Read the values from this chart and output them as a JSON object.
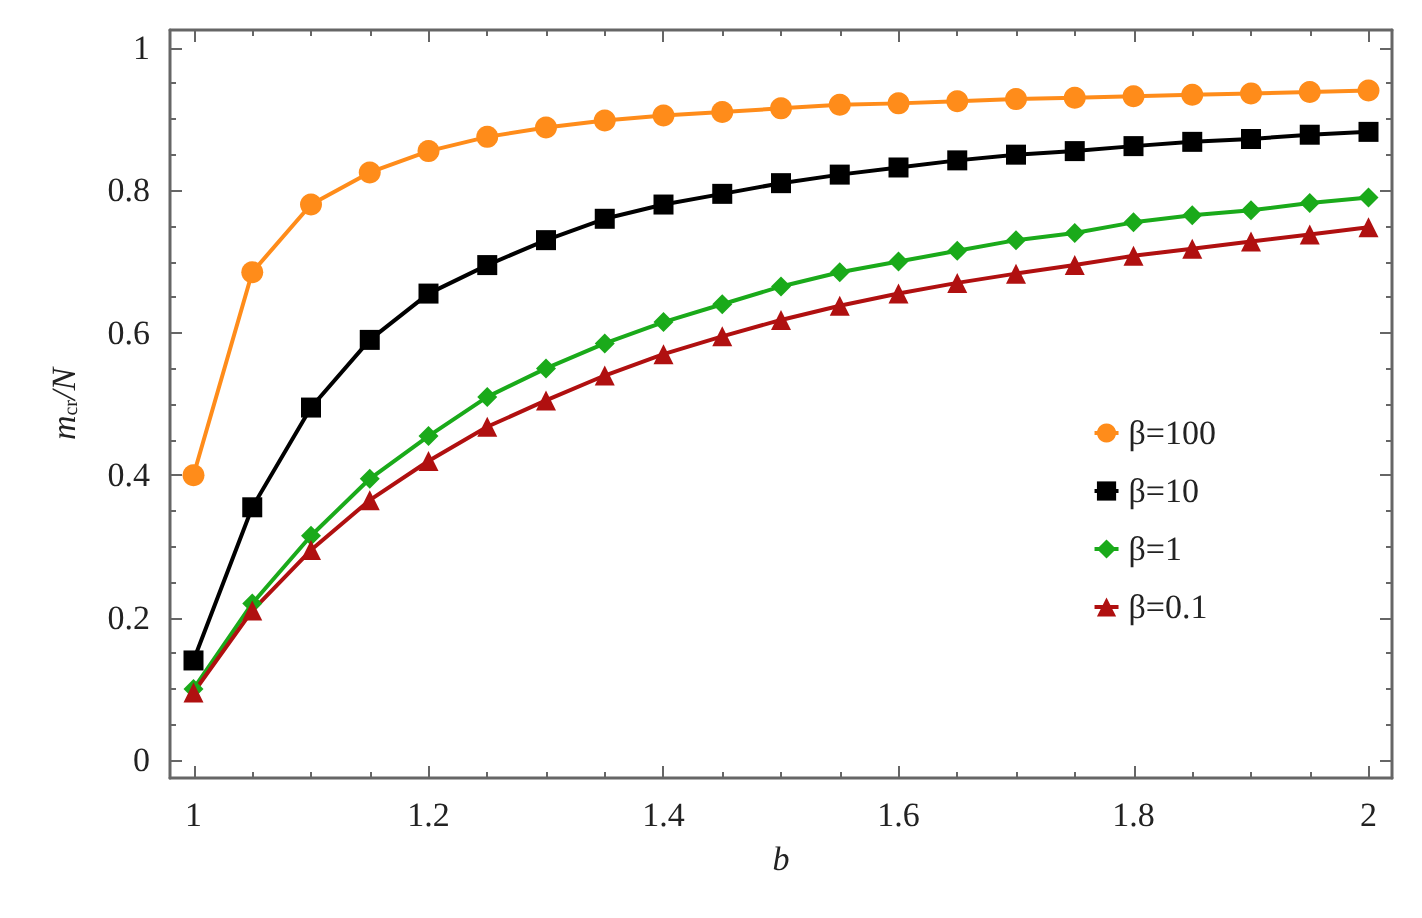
{
  "chart_data": {
    "type": "line",
    "xlabel": "b",
    "ylabel": "m$_{cr}$/N",
    "x": [
      1,
      1.05,
      1.1,
      1.15,
      1.2,
      1.25,
      1.3,
      1.35,
      1.4,
      1.45,
      1.5,
      1.55,
      1.6,
      1.65,
      1.7,
      1.75,
      1.8,
      1.85,
      1.9,
      1.95,
      2
    ],
    "series": [
      {
        "name": "β=100",
        "color": "#ff8c1a",
        "marker": "circle",
        "values": [
          0.4,
          0.685,
          0.78,
          0.825,
          0.855,
          0.875,
          0.888,
          0.898,
          0.905,
          0.91,
          0.915,
          0.92,
          0.922,
          0.925,
          0.928,
          0.93,
          0.932,
          0.934,
          0.936,
          0.938,
          0.94
        ]
      },
      {
        "name": "β=10",
        "color": "#000000",
        "marker": "square",
        "values": [
          0.14,
          0.355,
          0.495,
          0.59,
          0.655,
          0.695,
          0.73,
          0.76,
          0.78,
          0.795,
          0.81,
          0.822,
          0.832,
          0.842,
          0.85,
          0.855,
          0.862,
          0.868,
          0.872,
          0.878,
          0.882
        ]
      },
      {
        "name": "β=1",
        "color": "#1aaa1a",
        "marker": "diamond",
        "values": [
          0.1,
          0.22,
          0.315,
          0.395,
          0.455,
          0.51,
          0.55,
          0.585,
          0.615,
          0.64,
          0.665,
          0.685,
          0.7,
          0.715,
          0.73,
          0.74,
          0.755,
          0.765,
          0.772,
          0.782,
          0.79
        ]
      },
      {
        "name": "β=0.1",
        "color": "#b01010",
        "marker": "triangle",
        "values": [
          0.095,
          0.21,
          0.295,
          0.365,
          0.42,
          0.468,
          0.505,
          0.54,
          0.57,
          0.595,
          0.618,
          0.638,
          0.655,
          0.67,
          0.683,
          0.695,
          0.708,
          0.718,
          0.728,
          0.738,
          0.748
        ]
      }
    ],
    "xlim": [
      0.98,
      2.02
    ],
    "xticks": [
      1,
      1.2,
      1.4,
      1.6,
      1.8,
      2
    ],
    "ylim": [
      -0.025,
      1.025
    ],
    "yticks": [
      0,
      0.2,
      0.4,
      0.6,
      0.8,
      1
    ],
    "grid": false,
    "legend": "right",
    "line_style": "solid"
  }
}
